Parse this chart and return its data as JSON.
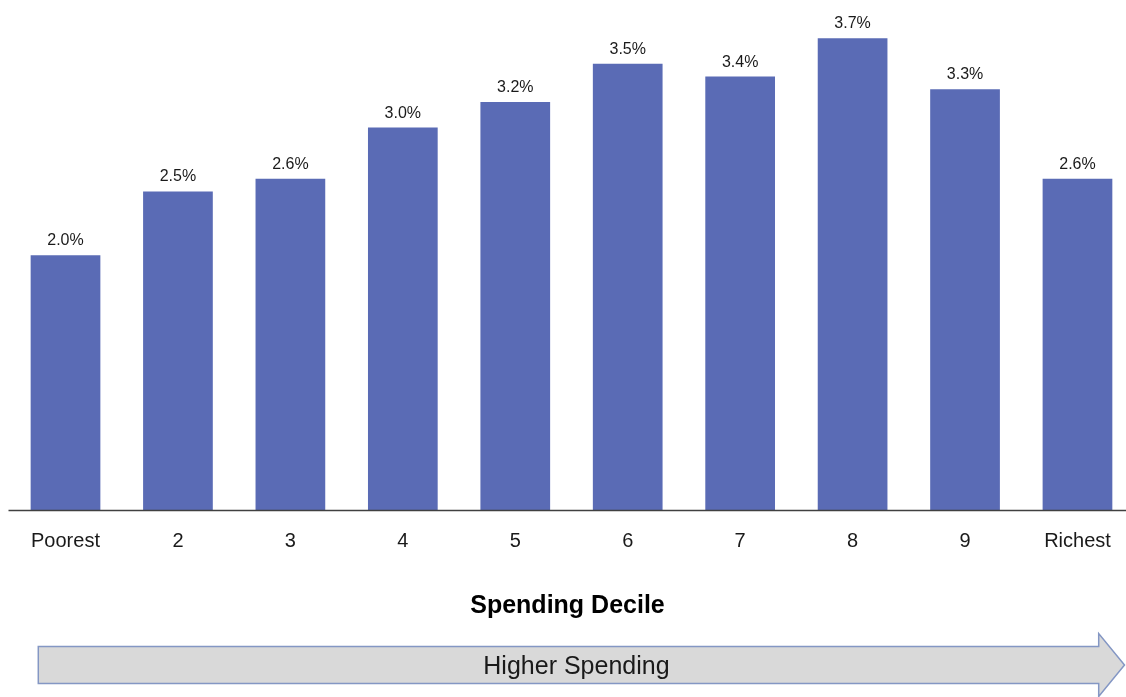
{
  "chart_data": {
    "type": "bar",
    "xlabel": "Spending Decile",
    "categories": [
      "Poorest",
      "2",
      "3",
      "4",
      "5",
      "6",
      "7",
      "8",
      "9",
      "Richest"
    ],
    "values": [
      2.0,
      2.5,
      2.6,
      3.0,
      3.2,
      3.5,
      3.4,
      3.7,
      3.3,
      2.6
    ],
    "value_labels": [
      "2.0%",
      "2.5%",
      "2.6%",
      "3.0%",
      "3.2%",
      "3.5%",
      "3.4%",
      "3.7%",
      "3.3%",
      "2.6%"
    ],
    "color": "#5a6bb5",
    "tick_labels": "x",
    "annotations": [
      "Higher Spending"
    ]
  }
}
